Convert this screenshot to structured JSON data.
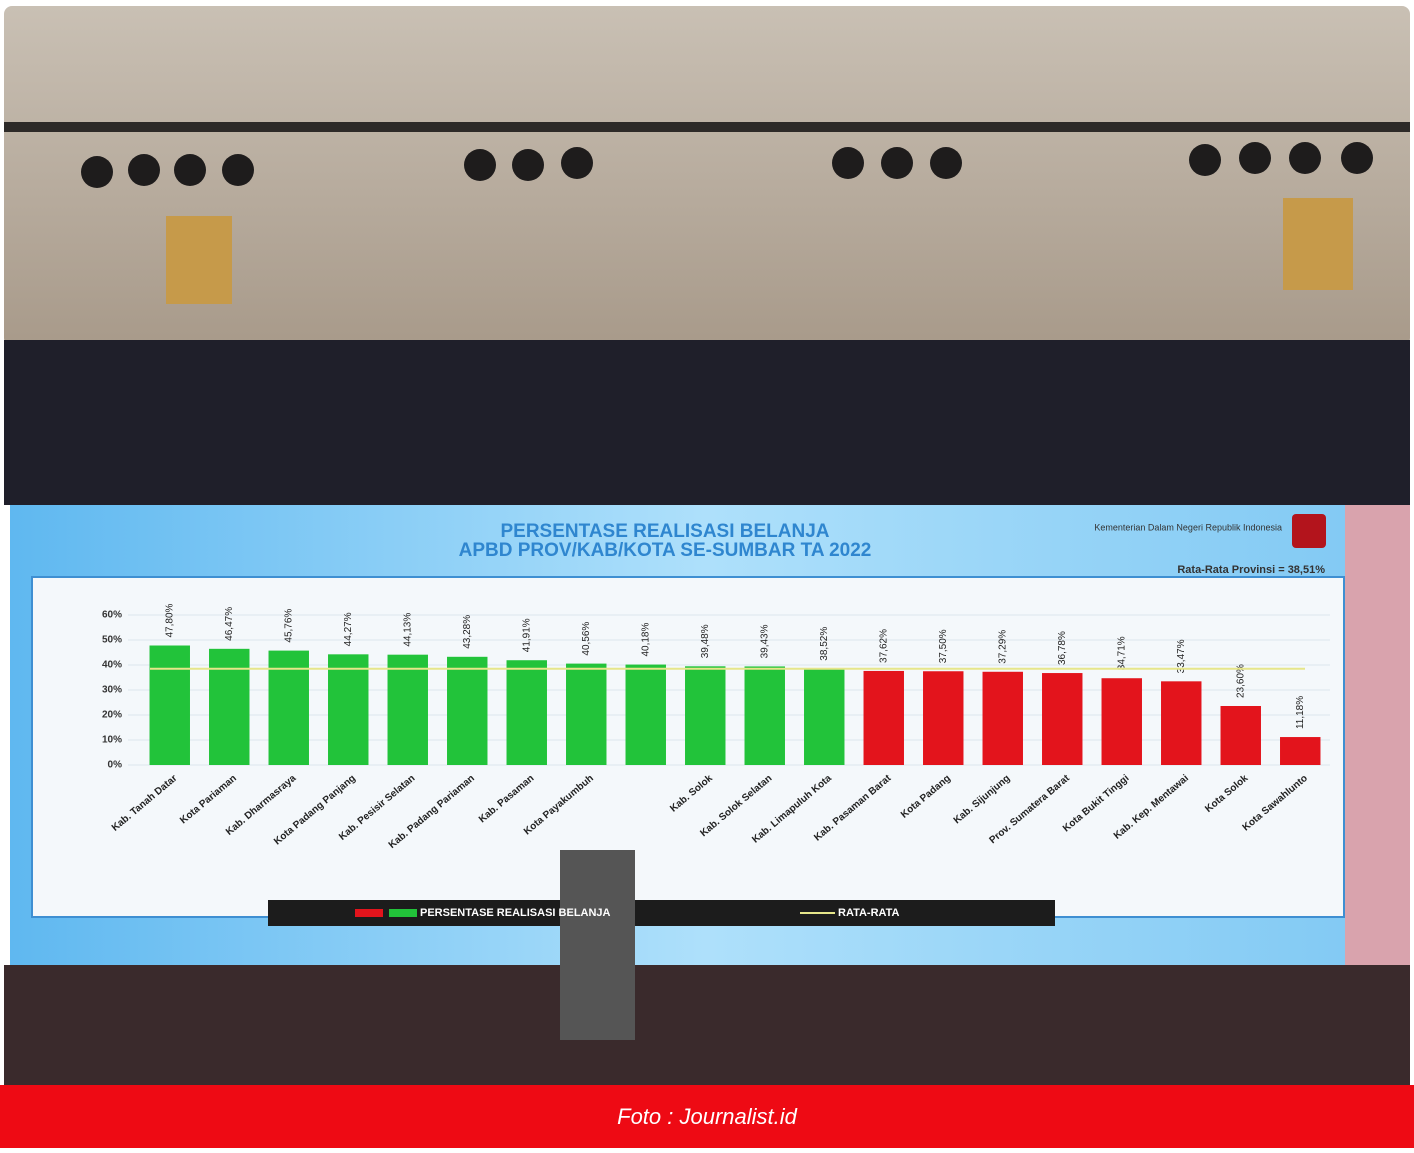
{
  "chart_data": {
    "type": "bar",
    "title": "PERSENTASE REALISASI BELANJA",
    "subtitle": "APBD PROV/KAB/KOTA SE-SUMBAR TA 2022",
    "source": "Kementerian Dalam Negeri Republik Indonesia",
    "annotation": "Rata-Rata Provinsi = 38,51%",
    "categories": [
      "Kab. Tanah Datar",
      "Kota Pariaman",
      "Kab. Dharmasraya",
      "Kota Padang Panjang",
      "Kab. Pesisir Selatan",
      "Kab. Padang Pariaman",
      "Kab. Pasaman",
      "Kota Payakumbuh",
      null,
      "Kab. Solok",
      "Kab. Solok Selatan",
      "Kab. Limapuluh Kota",
      "Kab. Pasaman Barat",
      "Kota Padang",
      "Kab. Sijunjung",
      "Prov. Sumatera Barat",
      "Kota Bukit Tinggi",
      "Kab. Kep. Mentawai",
      "Kota Solok",
      "Kota Sawahlunto"
    ],
    "series": [
      {
        "name": "PERSENTASE REALISASI BELANJA",
        "values": [
          47.8,
          46.47,
          45.76,
          44.27,
          44.13,
          43.28,
          41.91,
          40.56,
          40.18,
          39.48,
          39.43,
          38.52,
          37.62,
          37.5,
          37.29,
          36.78,
          34.71,
          33.47,
          23.6,
          11.18
        ],
        "value_labels": [
          "47,80%",
          "46,47%",
          "45,76%",
          "44,27%",
          "44,13%",
          "43,28%",
          "41,91%",
          "40,56%",
          "40,18%",
          "39,48%",
          "39,43%",
          "38,52%",
          "37,62%",
          "37,50%",
          "37,29%",
          "36,78%",
          "34,71%",
          "33,47%",
          "23,60%",
          "11,18%"
        ],
        "colors": [
          "#22c33a",
          "#22c33a",
          "#22c33a",
          "#22c33a",
          "#22c33a",
          "#22c33a",
          "#22c33a",
          "#22c33a",
          "#22c33a",
          "#22c33a",
          "#22c33a",
          "#22c33a",
          "#e3141c",
          "#e3141c",
          "#e3141c",
          "#e3141c",
          "#e3141c",
          "#e3141c",
          "#e3141c",
          "#e3141c"
        ]
      }
    ],
    "reference_line": {
      "name": "RATA-RATA",
      "value": 38.51,
      "color": "#e6e68a"
    },
    "ylim": [
      0,
      60
    ],
    "yticks": [
      {
        "value": 0,
        "label": "0%"
      },
      {
        "value": 10,
        "label": "10%"
      },
      {
        "value": 20,
        "label": "20%"
      },
      {
        "value": 30,
        "label": "30%"
      },
      {
        "value": 40,
        "label": "40%"
      },
      {
        "value": 50,
        "label": "50%"
      },
      {
        "value": 60,
        "label": "60%"
      }
    ],
    "grid": true
  },
  "caption": "Foto : Journalist.id"
}
